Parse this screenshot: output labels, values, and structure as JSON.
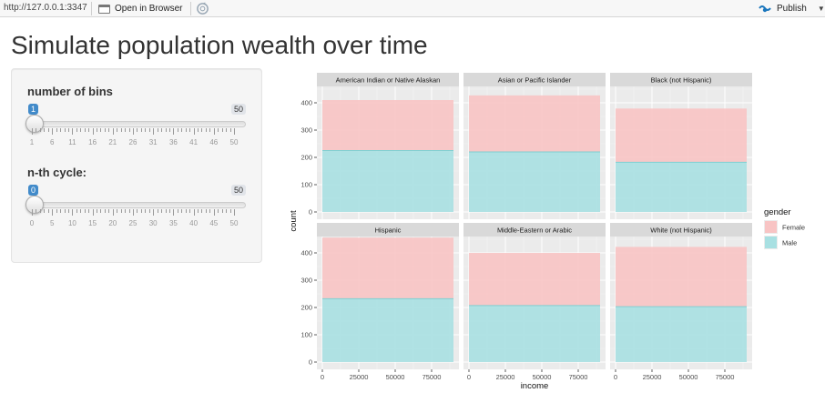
{
  "toolbar": {
    "url": "http://127.0.0.1:3347",
    "open_in_browser": "Open in Browser",
    "publish": "Publish",
    "accent": "#1b77bd"
  },
  "page": {
    "title": "Simulate population wealth over time"
  },
  "controls": {
    "bins": {
      "label": "number of bins",
      "value": "1",
      "max": "50",
      "tick_labels": [
        "1",
        "6",
        "11",
        "16",
        "21",
        "26",
        "31",
        "36",
        "41",
        "46",
        "50"
      ]
    },
    "cycle": {
      "label": "n-th cycle:",
      "value": "0",
      "max": "50",
      "tick_labels": [
        "0",
        "5",
        "10",
        "15",
        "20",
        "25",
        "30",
        "35",
        "40",
        "45",
        "50"
      ]
    }
  },
  "chart_data": {
    "type": "bar",
    "stacked": true,
    "facets": [
      {
        "label": "American Indian or Native Alaskan",
        "Male": 225,
        "Female": 185
      },
      {
        "label": "Asian or Pacific Islander",
        "Male": 220,
        "Female": 207
      },
      {
        "label": "Black (not Hispanic)",
        "Male": 182,
        "Female": 197
      },
      {
        "label": "Hispanic",
        "Male": 232,
        "Female": 224
      },
      {
        "label": "Middle-Eastern or Arabic",
        "Male": 207,
        "Female": 193
      },
      {
        "label": "White (not Hispanic)",
        "Male": 203,
        "Female": 219
      }
    ],
    "x_ticks": [
      "0",
      "25000",
      "50000",
      "75000"
    ],
    "x_range": [
      0,
      90000
    ],
    "y_ticks": [
      "0",
      "100",
      "200",
      "300",
      "400"
    ],
    "ylim": [
      0,
      460
    ],
    "xlabel": "income",
    "ylabel": "count",
    "legend": {
      "title": "gender",
      "position": "right",
      "items": [
        {
          "name": "Female",
          "color": "#f8c4c4"
        },
        {
          "name": "Male",
          "color": "#a8e0e2"
        }
      ]
    },
    "colors": {
      "panel": "#ebebeb",
      "strip": "#d9d9d9",
      "grid": "#ffffff",
      "male_line": "#7fcfd2",
      "female_line": "#f0aaaa"
    }
  }
}
